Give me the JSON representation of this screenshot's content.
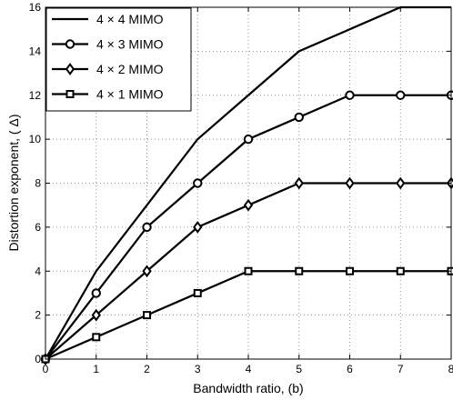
{
  "chart_data": {
    "type": "line",
    "xlabel": "Bandwidth ratio, (b)",
    "ylabel": "Distortion exponent, ( Δ)",
    "xlim": [
      0,
      8
    ],
    "ylim": [
      0,
      16
    ],
    "xticks": [
      0,
      1,
      2,
      3,
      4,
      5,
      6,
      7,
      8
    ],
    "yticks": [
      0,
      2,
      4,
      6,
      8,
      10,
      12,
      14,
      16
    ],
    "grid": "dotted",
    "legend_position": "top-left",
    "series": [
      {
        "name": "4 × 4 MIMO",
        "marker": "none",
        "x": [
          0,
          1,
          2,
          3,
          4,
          5,
          6,
          7,
          8
        ],
        "y": [
          0,
          4,
          7,
          10,
          12,
          14,
          15,
          16,
          16
        ]
      },
      {
        "name": "4 × 3 MIMO",
        "marker": "circle",
        "x": [
          0,
          1,
          2,
          3,
          4,
          5,
          6,
          7,
          8
        ],
        "y": [
          0,
          3,
          6,
          8,
          10,
          11,
          12,
          12,
          12
        ]
      },
      {
        "name": "4 × 2 MIMO",
        "marker": "diamond",
        "x": [
          0,
          1,
          2,
          3,
          4,
          5,
          6,
          7,
          8
        ],
        "y": [
          0,
          2,
          4,
          6,
          7,
          8,
          8,
          8,
          8
        ]
      },
      {
        "name": "4 × 1 MIMO",
        "marker": "square",
        "x": [
          0,
          1,
          2,
          3,
          4,
          5,
          6,
          7,
          8
        ],
        "y": [
          0,
          1,
          2,
          3,
          4,
          4,
          4,
          4,
          4
        ]
      }
    ]
  }
}
